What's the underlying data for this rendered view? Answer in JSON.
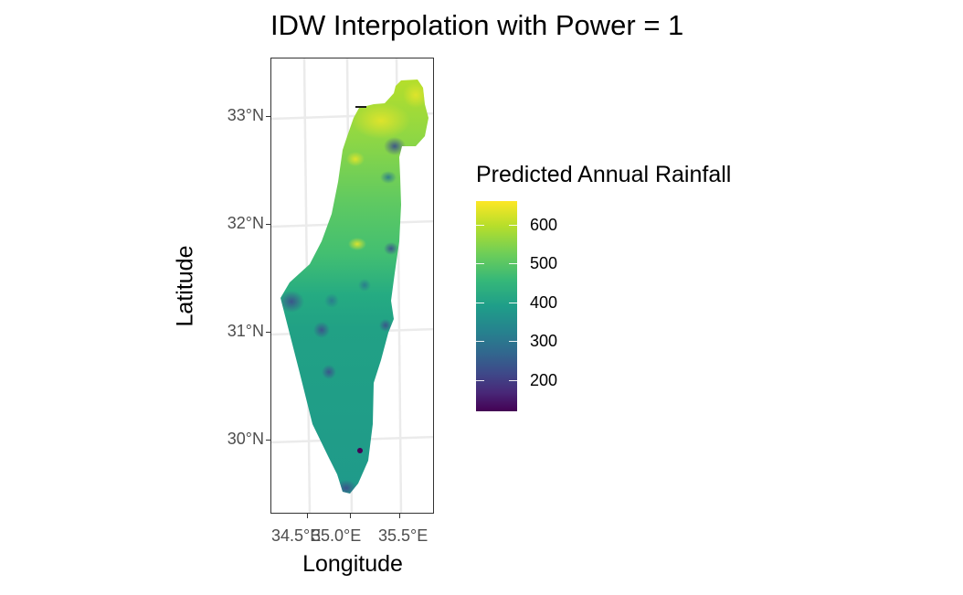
{
  "title": "IDW Interpolation with Power = 1",
  "x_axis_title": "Longitude",
  "y_axis_title": "Latitude",
  "y_ticks": [
    "33°N",
    "32°N",
    "31°N",
    "30°N"
  ],
  "x_ticks": [
    "34.5°E",
    "35.0°E",
    "35.5°E"
  ],
  "legend": {
    "title": "Predicted Annual Rainfall",
    "labels": [
      "600",
      "500",
      "400",
      "300",
      "200"
    ],
    "colors": [
      "#440154",
      "#3e4989",
      "#26828e",
      "#1f9e89",
      "#35b779",
      "#6ece58",
      "#b5de2b",
      "#fde725"
    ]
  },
  "map": {
    "fill_low_color": "#21918c",
    "fill_mid_color": "#43bf71",
    "fill_high_color": "#b8de29",
    "hotspot_color": "#e1e42b",
    "coldspot_color": "#3b528b",
    "minimum_color": "#440154"
  }
}
